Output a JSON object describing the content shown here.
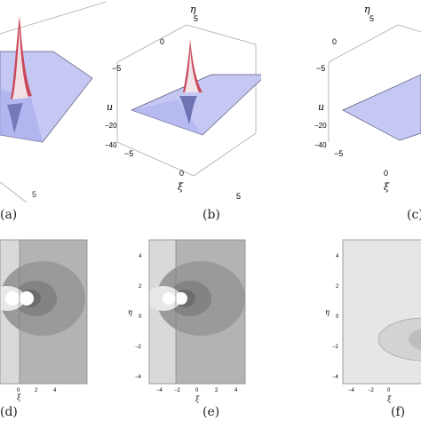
{
  "figure": {
    "captions": [
      "(a)",
      "(b)",
      "(c)",
      "(d)",
      "(e)",
      "(f)"
    ],
    "surface_axes": {
      "eta_label": "η",
      "xi_label": "ξ",
      "u_label": "u",
      "eta_ticks": [
        "5",
        "0",
        "−5"
      ],
      "u_ticks": [
        "−20",
        "−40"
      ],
      "xi_ticks": [
        "−5",
        "0",
        "5"
      ]
    },
    "contour_axes": {
      "eta_label": "η",
      "xi_label": "ξ",
      "eta_ticks": [
        "4",
        "2",
        "0",
        "−2",
        "−4"
      ],
      "xi_ticks": [
        "−4",
        "−2",
        "0",
        "2",
        "4"
      ]
    },
    "colors": {
      "surface_base": "#c4c6f4",
      "surface_edge": "#5a5a7a",
      "peak": "#b02030",
      "contour_light": "#d6d6d6",
      "contour_mid": "#b4b4b4",
      "contour_dark": "#8e8e8e",
      "contour_darkest": "#6a6a6a",
      "box_edge": "#888888"
    }
  }
}
